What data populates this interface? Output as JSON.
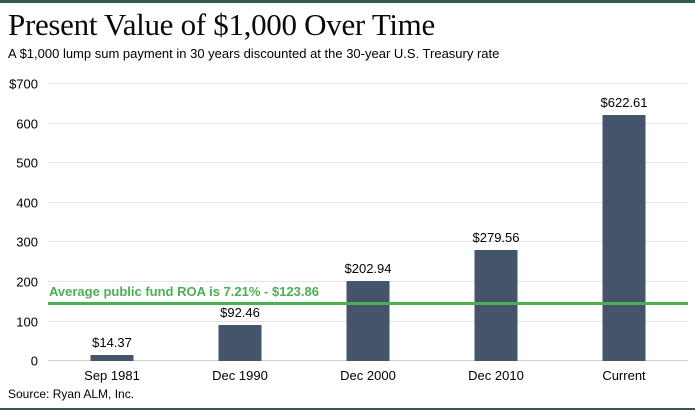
{
  "header": {
    "title": "Present Value of $1,000 Over Time",
    "subtitle": "A $1,000 lump sum payment in 30 years discounted at the 30-year U.S. Treasury rate"
  },
  "footer": {
    "source": "Source: Ryan ALM, Inc."
  },
  "colors": {
    "bar": "#44546a",
    "reference_line": "#4caf50",
    "accent_border": "#2e5c44",
    "gridline": "#e4e4e4"
  },
  "chart_data": {
    "type": "bar",
    "title": "Present Value of $1,000 Over Time",
    "subtitle": "A $1,000 lump sum payment in 30 years discounted at the 30-year U.S. Treasury rate",
    "categories": [
      "Sep 1981",
      "Dec 1990",
      "Dec 2000",
      "Dec 2010",
      "Current"
    ],
    "values": [
      14.37,
      92.46,
      202.94,
      279.56,
      622.61
    ],
    "value_labels": [
      "$14.37",
      "$92.46",
      "$202.94",
      "$279.56",
      "$622.61"
    ],
    "xlabel": "",
    "ylabel": "",
    "ylim": [
      0,
      700
    ],
    "yticks": [
      0,
      100,
      200,
      300,
      400,
      500,
      600,
      700
    ],
    "ytick_labels": [
      "0",
      "100",
      "200",
      "300",
      "400",
      "500",
      "600",
      "$700"
    ],
    "grid": "horizontal",
    "legend": "none",
    "ref_line": {
      "label": "Average public fund ROA is 7.21% - $123.86",
      "value": 123.86,
      "render_value": 145
    }
  }
}
